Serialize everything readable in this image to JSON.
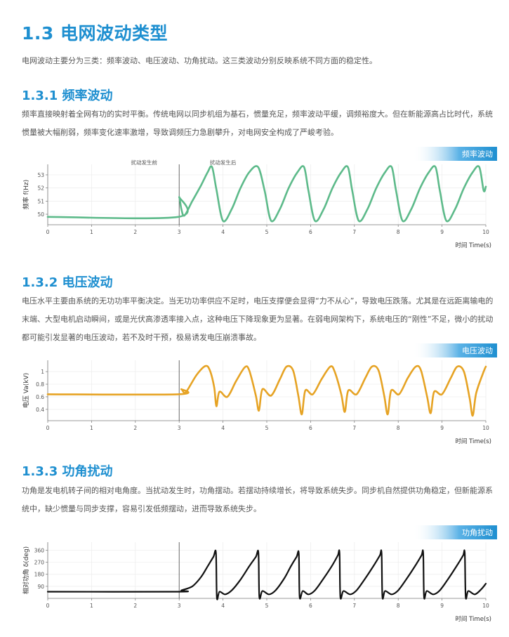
{
  "section_title": "1.3  电网波动类型",
  "intro": "电网波动主要分为三类：频率波动、电压波动、功角扰动。这三类波动分别反映系统不同方面的稳定性。",
  "sections": [
    {
      "heading": "1.3.1  频率波动",
      "paragraph": "频率直接映射着全网有功的实时平衡。传统电网以同步机组为基石，惯量充足，频率波动平缓，调频裕度大。但在新能源高占比时代，系统惯量被大幅削弱，频率变化速率激增，导致调频压力急剧攀升，对电网安全构成了严峻考验。"
    },
    {
      "heading": "1.3.2  电压波动",
      "paragraph": "电压水平主要由系统的无功功率平衡决定。当无功功率供应不足时，电压支撑便会显得“力不从心”，导致电压跌落。尤其是在远距离输电的末端、大型电机启动瞬间，或是光伏高渗透率接入点，这种电压下降现象更为显著。在弱电网架构下，系统电压的“刚性”不足，微小的扰动都可能引发显著的电压波动，若不及时干预，极易诱发电压崩溃事故。"
    },
    {
      "heading": "1.3.3  功角扰动",
      "paragraph": "功角是发电机转子间的相对电角度。当扰动发生时，功角摆动。若摆动持续增长，将导致系统失步。同步机自然提供功角稳定，但新能源系统中，缺少惯量与同步支撑，容易引发低频摆动，进而导致系统失步。"
    }
  ],
  "chart_data": [
    {
      "type": "line",
      "tag": "频率波动",
      "color": "#5dba8a",
      "ylabel": "频率 f(Hz)",
      "xlabel": "时间 Time(s)",
      "xlim": [
        0,
        10
      ],
      "ylim": [
        49.2,
        53.8
      ],
      "xticks": [
        "0",
        "1",
        "2",
        "3",
        "4",
        "5",
        "6",
        "7",
        "8",
        "9",
        "10"
      ],
      "yticks": [
        "50",
        "51",
        "52",
        "53"
      ],
      "annotations": [
        "扰动发生前",
        "扰动发生后"
      ],
      "disturbance_x": 3,
      "x": [
        0,
        2.98,
        3.0,
        3.05,
        3.12,
        3.3,
        3.5,
        3.65,
        3.75,
        3.85,
        4.0,
        4.2,
        4.4,
        4.6,
        4.8,
        4.95,
        5.1,
        5.3,
        5.5,
        5.7,
        5.85,
        5.95,
        6.1,
        6.3,
        6.5,
        6.7,
        6.85,
        6.95,
        7.1,
        7.3,
        7.5,
        7.7,
        7.85,
        7.95,
        8.1,
        8.3,
        8.5,
        8.7,
        8.85,
        8.95,
        9.1,
        9.3,
        9.5,
        9.7,
        9.85,
        9.95,
        10.0
      ],
      "y": [
        49.8,
        49.8,
        51.3,
        50.4,
        49.9,
        51.0,
        52.2,
        53.2,
        53.6,
        51.9,
        49.5,
        50.4,
        52.0,
        53.2,
        53.6,
        51.8,
        49.5,
        50.4,
        52.0,
        53.2,
        53.6,
        51.8,
        49.5,
        50.4,
        52.0,
        53.2,
        53.6,
        51.8,
        49.5,
        50.4,
        52.0,
        53.2,
        53.6,
        51.8,
        49.5,
        50.4,
        52.0,
        53.2,
        53.6,
        51.8,
        49.5,
        50.4,
        52.0,
        53.2,
        53.6,
        51.8,
        52.1
      ]
    },
    {
      "type": "line",
      "tag": "电压波动",
      "color": "#e6a324",
      "ylabel": "电压 Va(kV)",
      "xlabel": "时间 Time(s)",
      "xlim": [
        0,
        10
      ],
      "ylim": [
        0.22,
        1.18
      ],
      "xticks": [
        "0",
        "1",
        "2",
        "3",
        "4",
        "5",
        "6",
        "7",
        "8",
        "9",
        "10"
      ],
      "yticks": [
        "0.4",
        "0.6",
        "0.8",
        "1"
      ],
      "disturbance_x": 3,
      "x": [
        0,
        2.98,
        3.05,
        3.12,
        3.2,
        3.4,
        3.6,
        3.7,
        3.8,
        3.85,
        3.92,
        4.1,
        4.3,
        4.5,
        4.6,
        4.75,
        4.82,
        4.9,
        5.1,
        5.3,
        5.45,
        5.6,
        5.72,
        5.8,
        5.88,
        6.05,
        6.25,
        6.45,
        6.55,
        6.7,
        6.78,
        6.86,
        7.05,
        7.25,
        7.4,
        7.55,
        7.68,
        7.76,
        7.84,
        8.02,
        8.22,
        8.4,
        8.52,
        8.66,
        8.74,
        8.82,
        9.0,
        9.2,
        9.35,
        9.5,
        9.63,
        9.7,
        9.78,
        9.95,
        10.0
      ],
      "y": [
        0.64,
        0.64,
        0.72,
        0.66,
        0.72,
        0.95,
        1.09,
        1.02,
        0.75,
        0.45,
        0.68,
        0.6,
        0.85,
        1.07,
        1.02,
        0.62,
        0.38,
        0.72,
        0.62,
        0.88,
        1.08,
        1.02,
        0.62,
        0.32,
        0.7,
        0.64,
        0.88,
        1.08,
        1.0,
        0.64,
        0.36,
        0.7,
        0.64,
        0.9,
        1.08,
        1.02,
        0.62,
        0.32,
        0.7,
        0.64,
        0.9,
        1.08,
        1.02,
        0.6,
        0.34,
        0.68,
        0.64,
        0.9,
        1.08,
        1.0,
        0.58,
        0.3,
        0.66,
        1.0,
        1.08
      ]
    },
    {
      "type": "line",
      "tag": "功角扰动",
      "color": "#111111",
      "ylabel": "相对功角 δ(deg)",
      "xlabel": "时间 Time(s)",
      "xlim": [
        0,
        10
      ],
      "ylim": [
        0,
        420
      ],
      "xticks": [
        "0",
        "1",
        "2",
        "3",
        "4",
        "5",
        "6",
        "7",
        "8",
        "9",
        "10"
      ],
      "yticks": [
        "90",
        "180",
        "270",
        "360"
      ],
      "disturbance_x": 3,
      "x": [
        0,
        2.98,
        3.05,
        3.3,
        3.5,
        3.65,
        3.78,
        3.84,
        3.86,
        3.92,
        4.05,
        4.2,
        4.4,
        4.6,
        4.75,
        4.81,
        4.83,
        4.9,
        5.05,
        5.2,
        5.4,
        5.55,
        5.68,
        5.73,
        5.75,
        5.82,
        5.95,
        6.1,
        6.3,
        6.5,
        6.62,
        6.66,
        6.68,
        6.75,
        6.9,
        7.05,
        7.25,
        7.45,
        7.58,
        7.62,
        7.64,
        7.7,
        7.85,
        8.0,
        8.2,
        8.4,
        8.53,
        8.57,
        8.59,
        8.65,
        8.8,
        8.95,
        9.15,
        9.35,
        9.48,
        9.52,
        9.54,
        9.6,
        9.75,
        9.9,
        10.0
      ],
      "y": [
        50,
        50,
        60,
        90,
        160,
        240,
        310,
        340,
        5,
        50,
        30,
        60,
        140,
        240,
        310,
        340,
        10,
        55,
        30,
        60,
        150,
        240,
        310,
        335,
        10,
        55,
        30,
        60,
        150,
        250,
        320,
        340,
        10,
        55,
        30,
        60,
        150,
        250,
        320,
        340,
        10,
        55,
        30,
        60,
        150,
        250,
        320,
        340,
        10,
        55,
        30,
        60,
        150,
        250,
        320,
        340,
        10,
        55,
        30,
        70,
        110
      ]
    }
  ]
}
